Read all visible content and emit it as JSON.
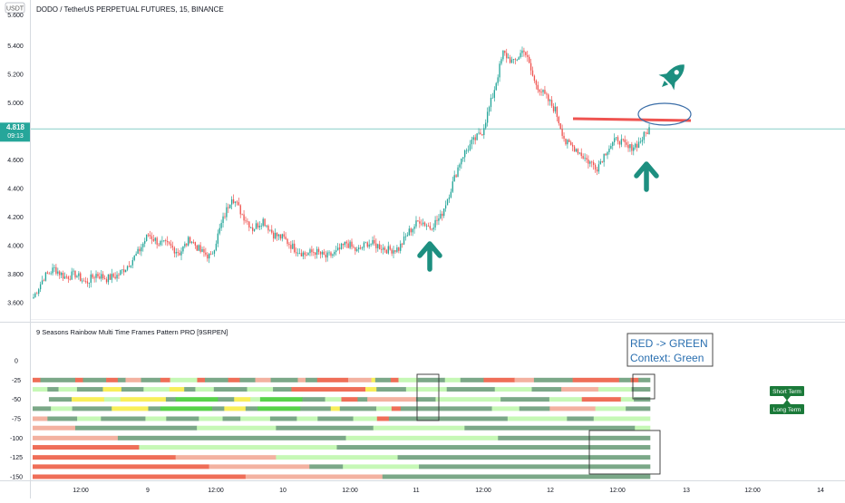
{
  "header": {
    "symbol_title": "DODO / TetherUS PERPETUAL FUTURES, 15, BINANCE",
    "currency": "USDT",
    "top_tick": "5.600"
  },
  "price_badge": {
    "price": "4.818",
    "countdown": "09:13",
    "color": "#26a69a"
  },
  "colors": {
    "up": "#26a69a",
    "down": "#ef5350",
    "accent": "#1d8f80",
    "annotation_red": "#ef5350",
    "annotation_oval": "#3b6ea8"
  },
  "icons": [
    "rocket-icon",
    "up-arrow-icon"
  ],
  "chart_data": [
    {
      "type": "candlestick",
      "title": "DODO / TetherUS PERPETUAL FUTURES, 15, BINANCE",
      "ylabel": "USDT",
      "ylim": [
        3.55,
        5.62
      ],
      "y_ticks": [
        "3.600",
        "3.800",
        "4.000",
        "4.200",
        "4.400",
        "4.600",
        "4.800",
        "5.000",
        "5.200",
        "5.400"
      ],
      "x_ticks": [
        "12:00",
        "9",
        "12:00",
        "10",
        "12:00",
        "11",
        "12:00",
        "12",
        "12:00",
        "13",
        "12:00",
        "14"
      ],
      "current_price": 4.818,
      "price_path": [
        [
          0,
          3.64
        ],
        [
          6,
          3.78
        ],
        [
          12,
          3.84
        ],
        [
          18,
          3.78
        ],
        [
          24,
          3.8
        ],
        [
          30,
          3.74
        ],
        [
          36,
          3.8
        ],
        [
          42,
          3.77
        ],
        [
          48,
          3.79
        ],
        [
          54,
          3.86
        ],
        [
          60,
          3.95
        ],
        [
          66,
          4.08
        ],
        [
          72,
          4.02
        ],
        [
          78,
          4.0
        ],
        [
          84,
          3.95
        ],
        [
          90,
          4.05
        ],
        [
          96,
          3.96
        ],
        [
          102,
          3.92
        ],
        [
          108,
          4.15
        ],
        [
          114,
          4.35
        ],
        [
          120,
          4.22
        ],
        [
          126,
          4.12
        ],
        [
          132,
          4.18
        ],
        [
          138,
          4.08
        ],
        [
          144,
          4.05
        ],
        [
          150,
          3.98
        ],
        [
          156,
          3.94
        ],
        [
          162,
          3.96
        ],
        [
          168,
          3.92
        ],
        [
          174,
          3.95
        ],
        [
          180,
          4.02
        ],
        [
          186,
          3.96
        ],
        [
          192,
          4.02
        ],
        [
          198,
          4.0
        ],
        [
          204,
          3.97
        ],
        [
          210,
          3.98
        ],
        [
          216,
          4.1
        ],
        [
          222,
          4.18
        ],
        [
          228,
          4.13
        ],
        [
          234,
          4.2
        ],
        [
          240,
          4.4
        ],
        [
          246,
          4.62
        ],
        [
          252,
          4.72
        ],
        [
          258,
          4.8
        ],
        [
          264,
          5.05
        ],
        [
          270,
          5.35
        ],
        [
          276,
          5.28
        ],
        [
          282,
          5.38
        ],
        [
          288,
          5.15
        ],
        [
          294,
          5.05
        ],
        [
          300,
          4.95
        ],
        [
          306,
          4.72
        ],
        [
          312,
          4.68
        ],
        [
          318,
          4.6
        ],
        [
          324,
          4.55
        ],
        [
          330,
          4.68
        ],
        [
          336,
          4.75
        ],
        [
          342,
          4.68
        ],
        [
          348,
          4.72
        ],
        [
          354,
          4.82
        ]
      ],
      "annotations": [
        {
          "type": "horizontal-line",
          "from_x": 304,
          "to_x": 360,
          "value": 4.89
        },
        {
          "type": "arrow-up",
          "label": "up-arrow-icon",
          "at": "day 11 low"
        },
        {
          "type": "arrow-up",
          "label": "up-arrow-icon",
          "at": "day 12 low"
        },
        {
          "type": "rocket",
          "label": "rocket-icon"
        }
      ]
    },
    {
      "type": "heatmap",
      "title": "9 Seasons Rainbow Multi Time Frames Pattern PRO [9SRPEN]",
      "ylim": [
        -150,
        0
      ],
      "y_ticks": [
        "0",
        "-25",
        "-50",
        "-75",
        "-100",
        "-125",
        "-150"
      ],
      "annotation_text": [
        "RED -> GREEN",
        "Context: Green"
      ],
      "legend_labels": [
        "Short Term",
        "Long Term"
      ],
      "palette": {
        "G": "#7ba888",
        "g": "#c6f8b6",
        "R": "#ef6e58",
        "r": "#f3b2a1",
        "Y": "#f8ef5a",
        "B": "#58d24a",
        "w": "#ffffff"
      },
      "rows": [
        {
          "level": -25,
          "segments": [
            [
              "R",
              4
            ],
            [
              "G",
              18
            ],
            [
              "R",
              4
            ],
            [
              "G",
              12
            ],
            [
              "R",
              6
            ],
            [
              "G",
              4
            ],
            [
              "r",
              8
            ],
            [
              "G",
              10
            ],
            [
              "R",
              5
            ],
            [
              "g",
              14
            ],
            [
              "R",
              4
            ],
            [
              "G",
              12
            ],
            [
              "R",
              6
            ],
            [
              "G",
              8
            ],
            [
              "r",
              8
            ],
            [
              "G",
              14
            ],
            [
              "r",
              4
            ],
            [
              "G",
              6
            ],
            [
              "R",
              16
            ],
            [
              "r",
              12
            ],
            [
              "Y",
              2
            ],
            [
              "G",
              8
            ],
            [
              "R",
              4
            ],
            [
              "g",
              10
            ],
            [
              "G",
              14
            ],
            [
              "g",
              8
            ],
            [
              "G",
              12
            ],
            [
              "R",
              16
            ],
            [
              "r",
              10
            ],
            [
              "G",
              20
            ],
            [
              "R",
              24
            ],
            [
              "G",
              6
            ],
            [
              "R",
              4
            ],
            [
              "G",
              6
            ]
          ]
        },
        {
          "level": -37,
          "segments": [
            [
              "g",
              8
            ],
            [
              "G",
              6
            ],
            [
              "g",
              10
            ],
            [
              "G",
              14
            ],
            [
              "Y",
              10
            ],
            [
              "G",
              12
            ],
            [
              "g",
              14
            ],
            [
              "Y",
              8
            ],
            [
              "G",
              6
            ],
            [
              "g",
              10
            ],
            [
              "G",
              18
            ],
            [
              "g",
              14
            ],
            [
              "G",
              10
            ],
            [
              "R",
              40
            ],
            [
              "Y",
              6
            ],
            [
              "G",
              16
            ],
            [
              "g",
              22
            ],
            [
              "G",
              26
            ],
            [
              "g",
              20
            ],
            [
              "G",
              16
            ],
            [
              "r",
              20
            ],
            [
              "g",
              18
            ],
            [
              "G",
              10
            ]
          ]
        },
        {
          "level": -50,
          "segments": [
            [
              "w",
              10
            ],
            [
              "G",
              14
            ],
            [
              "Y",
              20
            ],
            [
              "g",
              10
            ],
            [
              "Y",
              28
            ],
            [
              "G",
              6
            ],
            [
              "B",
              26
            ],
            [
              "G",
              10
            ],
            [
              "Y",
              10
            ],
            [
              "g",
              6
            ],
            [
              "B",
              26
            ],
            [
              "G",
              14
            ],
            [
              "g",
              10
            ],
            [
              "R",
              10
            ],
            [
              "G",
              6
            ],
            [
              "r",
              30
            ],
            [
              "G",
              12
            ],
            [
              "g",
              40
            ],
            [
              "G",
              30
            ],
            [
              "g",
              20
            ],
            [
              "R",
              24
            ],
            [
              "g",
              8
            ],
            [
              "G",
              10
            ]
          ]
        },
        {
          "level": -62,
          "segments": [
            [
              "G",
              12
            ],
            [
              "g",
              14
            ],
            [
              "G",
              26
            ],
            [
              "Y",
              24
            ],
            [
              "G",
              8
            ],
            [
              "B",
              34
            ],
            [
              "G",
              8
            ],
            [
              "Y",
              14
            ],
            [
              "G",
              8
            ],
            [
              "B",
              28
            ],
            [
              "G",
              20
            ],
            [
              "Y",
              6
            ],
            [
              "G",
              24
            ],
            [
              "g",
              10
            ],
            [
              "R",
              6
            ],
            [
              "G",
              60
            ],
            [
              "g",
              18
            ],
            [
              "G",
              20
            ],
            [
              "r",
              30
            ],
            [
              "g",
              20
            ],
            [
              "G",
              16
            ]
          ]
        },
        {
          "level": -75,
          "segments": [
            [
              "r",
              10
            ],
            [
              "G",
              20
            ],
            [
              "g",
              16
            ],
            [
              "G",
              30
            ],
            [
              "g",
              14
            ],
            [
              "G",
              22
            ],
            [
              "g",
              16
            ],
            [
              "G",
              12
            ],
            [
              "g",
              20
            ],
            [
              "G",
              18
            ],
            [
              "g",
              14
            ],
            [
              "G",
              24
            ],
            [
              "g",
              16
            ],
            [
              "R",
              8
            ],
            [
              "G",
              80
            ],
            [
              "g",
              40
            ],
            [
              "G",
              18
            ],
            [
              "g",
              38
            ]
          ]
        },
        {
          "level": -87,
          "segments": [
            [
              "r",
              28
            ],
            [
              "G",
              80
            ],
            [
              "g",
              52
            ],
            [
              "G",
              64
            ],
            [
              "g",
              60
            ],
            [
              "G",
              112
            ],
            [
              "g",
              10
            ]
          ]
        },
        {
          "level": -100,
          "segments": [
            [
              "r",
              56
            ],
            [
              "G",
              150
            ],
            [
              "g",
              100
            ],
            [
              "G",
              100
            ]
          ]
        },
        {
          "level": -112,
          "segments": [
            [
              "R",
              70
            ],
            [
              "g",
              130
            ],
            [
              "G",
              206
            ]
          ]
        },
        {
          "level": -125,
          "segments": [
            [
              "R",
              94
            ],
            [
              "r",
              66
            ],
            [
              "g",
              80
            ],
            [
              "G",
              166
            ]
          ]
        },
        {
          "level": -137,
          "segments": [
            [
              "R",
              116
            ],
            [
              "r",
              66
            ],
            [
              "G",
              22
            ],
            [
              "g",
              50
            ],
            [
              "G",
              152
            ]
          ]
        },
        {
          "level": -150,
          "segments": [
            [
              "R",
              140
            ],
            [
              "r",
              90
            ],
            [
              "G",
              176
            ]
          ]
        }
      ]
    }
  ]
}
